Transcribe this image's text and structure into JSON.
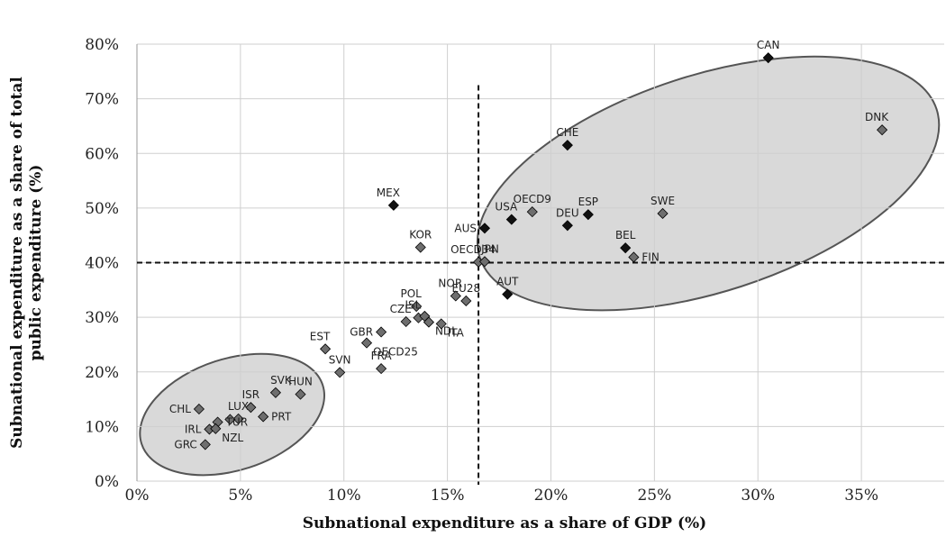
{
  "chart_data": {
    "type": "scatter",
    "title": "",
    "xlabel": "Subnational  expenditure as a share of GDP (%)",
    "ylabel_lines": [
      "Subnational expenditure as a share of total",
      "public expenditure (%)"
    ],
    "xlim": [
      0,
      39
    ],
    "ylim": [
      0,
      80
    ],
    "x_ticks": [
      0,
      5,
      10,
      15,
      20,
      25,
      30,
      35
    ],
    "x_tick_labels": [
      "0%",
      "5%",
      "10%",
      "15%",
      "20%",
      "25%",
      "30%",
      "35%"
    ],
    "y_ticks": [
      0,
      10,
      20,
      30,
      40,
      50,
      60,
      70,
      80
    ],
    "y_tick_labels": [
      "0%",
      "10%",
      "20%",
      "30%",
      "40%",
      "50%",
      "60%",
      "70%",
      "80%"
    ],
    "grid": true,
    "reference_lines": {
      "x": 16.5,
      "y": 40
    },
    "groups": [
      {
        "center": [
          4.6,
          12.2
        ],
        "radii": [
          4.6,
          10.2
        ],
        "rotation": -18
      },
      {
        "center": [
          27.6,
          54.5
        ],
        "radii": [
          11.6,
          19.8
        ],
        "rotation": -18
      }
    ],
    "colors": {
      "dark": "#111111",
      "gray": "#6e6e6e",
      "ellipse_fill": "#d9d9d9",
      "ellipse_stroke": "#555555"
    },
    "points": [
      {
        "label": "CAN",
        "x": 30.5,
        "y": 77.5,
        "color": "dark"
      },
      {
        "label": "DNK",
        "x": 36.0,
        "y": 64.3,
        "color": "gray"
      },
      {
        "label": "CHE",
        "x": 20.8,
        "y": 61.5,
        "color": "dark"
      },
      {
        "label": "MEX",
        "x": 12.4,
        "y": 50.5,
        "color": "dark"
      },
      {
        "label": "SWE",
        "x": 25.4,
        "y": 49.0,
        "color": "gray"
      },
      {
        "label": "ESP",
        "x": 21.8,
        "y": 48.8,
        "color": "dark"
      },
      {
        "label": "OECD9",
        "x": 19.1,
        "y": 49.3,
        "color": "gray"
      },
      {
        "label": "USA",
        "x": 18.1,
        "y": 47.9,
        "color": "dark"
      },
      {
        "label": "DEU",
        "x": 20.8,
        "y": 46.8,
        "color": "dark"
      },
      {
        "label": "AUS",
        "x": 16.8,
        "y": 46.3,
        "color": "dark"
      },
      {
        "label": "KOR",
        "x": 13.7,
        "y": 42.8,
        "color": "gray"
      },
      {
        "label": "BEL",
        "x": 23.6,
        "y": 42.7,
        "color": "dark"
      },
      {
        "label": "FIN",
        "x": 24.0,
        "y": 41.0,
        "color": "gray"
      },
      {
        "label": "OECD34",
        "x": 16.5,
        "y": 40.1,
        "color": "gray"
      },
      {
        "label": "JPN",
        "x": 16.8,
        "y": 40.2,
        "color": "gray"
      },
      {
        "label": "AUT",
        "x": 17.9,
        "y": 34.2,
        "color": "dark"
      },
      {
        "label": "NOR",
        "x": 15.4,
        "y": 33.9,
        "color": "gray"
      },
      {
        "label": "EU28",
        "x": 15.9,
        "y": 33.0,
        "color": "gray"
      },
      {
        "label": "POL",
        "x": 13.5,
        "y": 32.0,
        "color": "gray"
      },
      {
        "label": "ISL",
        "x": 13.6,
        "y": 29.9,
        "color": "gray"
      },
      {
        "label": "",
        "x": 13.9,
        "y": 30.2,
        "color": "gray"
      },
      {
        "label": "CZE",
        "x": 13.0,
        "y": 29.2,
        "color": "gray"
      },
      {
        "label": "NDL",
        "x": 14.1,
        "y": 29.1,
        "color": "gray"
      },
      {
        "label": "ITA",
        "x": 14.7,
        "y": 28.8,
        "color": "gray"
      },
      {
        "label": "GBR",
        "x": 11.8,
        "y": 27.3,
        "color": "gray"
      },
      {
        "label": "OECD25",
        "x": 11.1,
        "y": 25.3,
        "color": "gray"
      },
      {
        "label": "EST",
        "x": 9.1,
        "y": 24.2,
        "color": "gray"
      },
      {
        "label": "FRA",
        "x": 11.8,
        "y": 20.6,
        "color": "gray"
      },
      {
        "label": "SVN",
        "x": 9.8,
        "y": 19.9,
        "color": "gray"
      },
      {
        "label": "SVK",
        "x": 6.7,
        "y": 16.2,
        "color": "gray"
      },
      {
        "label": "HUN",
        "x": 7.9,
        "y": 15.9,
        "color": "gray"
      },
      {
        "label": "ISR",
        "x": 5.5,
        "y": 13.5,
        "color": "gray"
      },
      {
        "label": "CHL",
        "x": 3.0,
        "y": 13.2,
        "color": "gray"
      },
      {
        "label": "PRT",
        "x": 6.1,
        "y": 11.8,
        "color": "gray"
      },
      {
        "label": "LUX",
        "x": 4.9,
        "y": 11.4,
        "color": "gray"
      },
      {
        "label": "",
        "x": 4.5,
        "y": 11.3,
        "color": "gray"
      },
      {
        "label": "TUR",
        "x": 3.9,
        "y": 10.8,
        "color": "gray"
      },
      {
        "label": "IRL",
        "x": 3.5,
        "y": 9.5,
        "color": "gray"
      },
      {
        "label": "NZL",
        "x": 3.8,
        "y": 9.6,
        "color": "gray"
      },
      {
        "label": "GRC",
        "x": 3.3,
        "y": 6.7,
        "color": "gray"
      }
    ],
    "label_positions": {
      "CAN": "top",
      "DNK": "top-left",
      "CHE": "top",
      "MEX": "top-left",
      "SWE": "top",
      "ESP": "top",
      "OECD9": "top",
      "USA": "top-left",
      "DEU": "top",
      "AUS": "left",
      "KOR": "top",
      "BEL": "top",
      "FIN": "right",
      "OECD34": "top-left",
      "JPN": "top-right",
      "AUT": "top",
      "NOR": "top-left",
      "EU28": "top",
      "POL": "top-left",
      "ISL": "top-left",
      "CZE": "top-left",
      "NDL": "right-down",
      "ITA": "right-down",
      "GBR": "left",
      "OECD25": "right-down",
      "EST": "top-left",
      "FRA": "top",
      "SVN": "top",
      "SVK": "top-right",
      "HUN": "top",
      "ISR": "top",
      "CHL": "left",
      "PRT": "right",
      "LUX": "top",
      "TUR": "right",
      "IRL": "left",
      "NZL": "right-down",
      "GRC": "left"
    }
  }
}
